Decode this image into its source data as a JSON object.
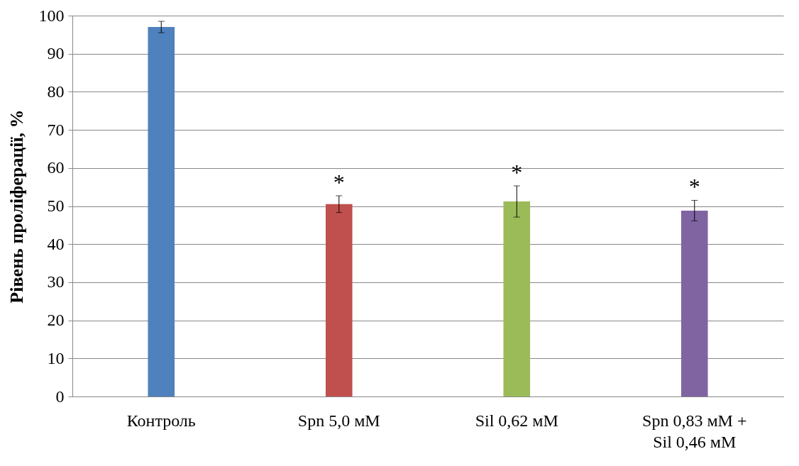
{
  "chart_data": {
    "type": "bar",
    "ylabel": "Рівень проліферації, %",
    "categories": [
      "Контроль",
      "Spn 5,0 мМ",
      "Sil 0,62 мМ",
      "Spn 0,83 мМ +\nSil 0,46 мМ"
    ],
    "values": [
      97.0,
      50.5,
      51.2,
      48.8
    ],
    "colors": [
      "#4f81bd",
      "#c0504d",
      "#9bbb59",
      "#8064a2"
    ],
    "errors": [
      1.5,
      2.2,
      4.1,
      2.7
    ],
    "ylim": [
      0,
      100
    ],
    "yticks": [
      0,
      10,
      20,
      30,
      40,
      50,
      60,
      70,
      80,
      90,
      100
    ],
    "grid": "y",
    "annotations": [
      "*",
      "*",
      "*"
    ]
  }
}
